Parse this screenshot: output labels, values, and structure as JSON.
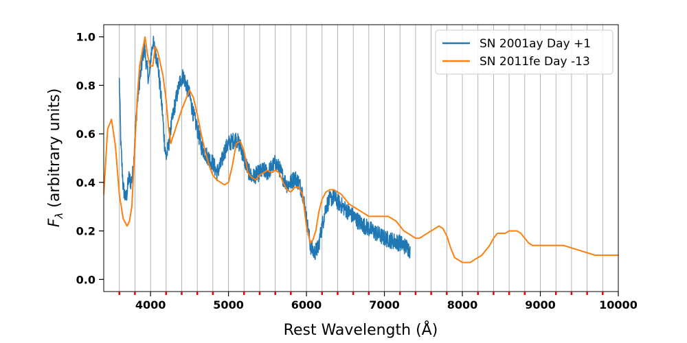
{
  "chart_data": {
    "type": "line",
    "title": "",
    "xlabel": "Rest Wavelength (Å)",
    "ylabel_main": "F",
    "ylabel_sub": "λ",
    "ylabel_rest": " (arbitrary units)",
    "xlim": [
      3400,
      10000
    ],
    "ylim": [
      -0.05,
      1.05
    ],
    "xticks": [
      4000,
      5000,
      6000,
      7000,
      8000,
      9000,
      10000
    ],
    "xtick_labels": [
      "4000",
      "5000",
      "6000",
      "7000",
      "8000",
      "9000",
      "10000"
    ],
    "yticks": [
      0.0,
      0.2,
      0.4,
      0.6,
      0.8,
      1.0
    ],
    "ytick_labels": [
      "0.0",
      "0.2",
      "0.4",
      "0.6",
      "0.8",
      "1.0"
    ],
    "vlines_x": [
      3600,
      3800,
      4000,
      4200,
      4400,
      4600,
      4800,
      5000,
      5200,
      5400,
      5600,
      5800,
      6000,
      6200,
      6400,
      6600,
      6800,
      7000,
      7200,
      7400,
      7600,
      7800,
      8000,
      8200,
      8400,
      8600,
      8800,
      9000,
      9200,
      9400,
      9600,
      9800
    ],
    "red_ticks_x": [
      3600,
      3800,
      4200,
      4400,
      4600,
      4800,
      5200,
      5400,
      5600,
      5800,
      6200,
      6400,
      6600,
      6800,
      7200,
      7400,
      7600,
      7800,
      8200,
      8400,
      8600,
      8800,
      9200,
      9400,
      9600,
      9800
    ],
    "legend_position": "top-right",
    "series": [
      {
        "name": "SN 2001ay Day +1",
        "color": "#1f77b4",
        "noise": 0.035,
        "x": [
          3600,
          3620,
          3650,
          3680,
          3700,
          3720,
          3750,
          3780,
          3800,
          3830,
          3850,
          3880,
          3900,
          3920,
          3950,
          3980,
          4000,
          4030,
          4060,
          4090,
          4120,
          4150,
          4180,
          4200,
          4230,
          4260,
          4300,
          4340,
          4380,
          4420,
          4460,
          4500,
          4550,
          4600,
          4650,
          4700,
          4750,
          4800,
          4850,
          4900,
          4950,
          5000,
          5050,
          5100,
          5150,
          5200,
          5250,
          5300,
          5350,
          5400,
          5450,
          5500,
          5550,
          5600,
          5650,
          5700,
          5750,
          5800,
          5850,
          5900,
          5950,
          6000,
          6050,
          6080,
          6100,
          6150,
          6200,
          6250,
          6300,
          6350,
          6400,
          6500,
          6600,
          6700,
          6800,
          6900,
          7000,
          7100,
          7200,
          7300,
          7330
        ],
        "y": [
          0.82,
          0.55,
          0.38,
          0.33,
          0.36,
          0.42,
          0.4,
          0.45,
          0.6,
          0.72,
          0.8,
          0.86,
          0.92,
          0.96,
          0.88,
          0.82,
          0.9,
          0.98,
          0.94,
          0.9,
          0.8,
          0.7,
          0.56,
          0.5,
          0.55,
          0.62,
          0.7,
          0.76,
          0.82,
          0.84,
          0.8,
          0.76,
          0.68,
          0.62,
          0.55,
          0.52,
          0.5,
          0.48,
          0.44,
          0.47,
          0.53,
          0.56,
          0.57,
          0.58,
          0.55,
          0.5,
          0.45,
          0.42,
          0.43,
          0.44,
          0.45,
          0.44,
          0.46,
          0.48,
          0.46,
          0.42,
          0.39,
          0.4,
          0.42,
          0.4,
          0.36,
          0.25,
          0.14,
          0.12,
          0.11,
          0.13,
          0.22,
          0.3,
          0.33,
          0.34,
          0.32,
          0.29,
          0.26,
          0.23,
          0.21,
          0.19,
          0.17,
          0.16,
          0.15,
          0.13,
          0.12
        ]
      },
      {
        "name": "SN 2011fe Day -13",
        "color": "#ff7f0e",
        "noise": 0.0,
        "x": [
          3400,
          3450,
          3500,
          3550,
          3600,
          3650,
          3700,
          3730,
          3760,
          3800,
          3830,
          3860,
          3900,
          3930,
          3960,
          3990,
          4030,
          4060,
          4090,
          4120,
          4160,
          4200,
          4230,
          4260,
          4300,
          4350,
          4400,
          4450,
          4500,
          4550,
          4600,
          4650,
          4700,
          4750,
          4800,
          4850,
          4900,
          4950,
          5000,
          5050,
          5100,
          5150,
          5200,
          5250,
          5300,
          5350,
          5400,
          5450,
          5500,
          5550,
          5600,
          5650,
          5700,
          5750,
          5800,
          5850,
          5900,
          5950,
          6000,
          6050,
          6080,
          6120,
          6160,
          6200,
          6250,
          6300,
          6350,
          6400,
          6450,
          6500,
          6550,
          6600,
          6650,
          6700,
          6750,
          6800,
          6850,
          6900,
          6950,
          7000,
          7050,
          7100,
          7150,
          7200,
          7250,
          7300,
          7350,
          7400,
          7450,
          7500,
          7550,
          7600,
          7650,
          7700,
          7750,
          7800,
          7850,
          7900,
          7950,
          8000,
          8050,
          8100,
          8150,
          8200,
          8250,
          8300,
          8350,
          8400,
          8450,
          8500,
          8550,
          8600,
          8650,
          8700,
          8750,
          8800,
          8850,
          8900,
          8950,
          9000,
          9100,
          9200,
          9300,
          9400,
          9500,
          9600,
          9700,
          9800,
          9900,
          10000
        ],
        "y": [
          0.35,
          0.62,
          0.66,
          0.55,
          0.35,
          0.25,
          0.22,
          0.24,
          0.3,
          0.55,
          0.75,
          0.88,
          0.95,
          1.0,
          0.93,
          0.88,
          0.88,
          0.96,
          0.94,
          0.9,
          0.84,
          0.74,
          0.63,
          0.56,
          0.6,
          0.65,
          0.7,
          0.74,
          0.78,
          0.75,
          0.68,
          0.6,
          0.53,
          0.47,
          0.43,
          0.41,
          0.4,
          0.39,
          0.4,
          0.47,
          0.56,
          0.57,
          0.53,
          0.44,
          0.42,
          0.41,
          0.43,
          0.44,
          0.45,
          0.44,
          0.45,
          0.44,
          0.4,
          0.37,
          0.36,
          0.38,
          0.38,
          0.35,
          0.22,
          0.15,
          0.16,
          0.2,
          0.28,
          0.33,
          0.36,
          0.37,
          0.37,
          0.36,
          0.35,
          0.33,
          0.31,
          0.3,
          0.29,
          0.28,
          0.27,
          0.26,
          0.26,
          0.26,
          0.26,
          0.26,
          0.26,
          0.25,
          0.24,
          0.22,
          0.2,
          0.19,
          0.18,
          0.17,
          0.17,
          0.18,
          0.19,
          0.2,
          0.21,
          0.22,
          0.21,
          0.18,
          0.13,
          0.09,
          0.08,
          0.07,
          0.07,
          0.07,
          0.08,
          0.09,
          0.1,
          0.12,
          0.14,
          0.17,
          0.19,
          0.19,
          0.19,
          0.2,
          0.2,
          0.2,
          0.19,
          0.17,
          0.15,
          0.14,
          0.14,
          0.14,
          0.14,
          0.14,
          0.14,
          0.13,
          0.12,
          0.11,
          0.1,
          0.1,
          0.1,
          0.1
        ]
      }
    ]
  }
}
